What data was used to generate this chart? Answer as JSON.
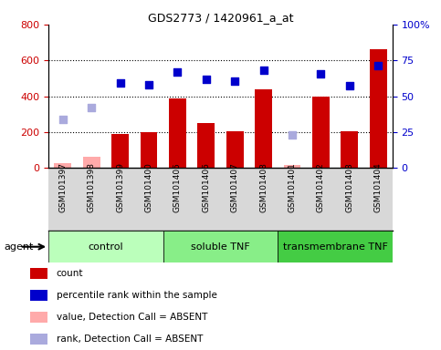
{
  "title": "GDS2773 / 1420961_a_at",
  "samples": [
    "GSM101397",
    "GSM101398",
    "GSM101399",
    "GSM101400",
    "GSM101405",
    "GSM101406",
    "GSM101407",
    "GSM101408",
    "GSM101401",
    "GSM101402",
    "GSM101403",
    "GSM101404"
  ],
  "groups": [
    {
      "label": "control",
      "start": 0,
      "end": 4,
      "color": "#bbffbb"
    },
    {
      "label": "soluble TNF",
      "start": 4,
      "end": 8,
      "color": "#88ee88"
    },
    {
      "label": "transmembrane TNF",
      "start": 8,
      "end": 12,
      "color": "#44cc44"
    }
  ],
  "bar_values": [
    null,
    null,
    190,
    200,
    390,
    250,
    205,
    440,
    null,
    400,
    205,
    660
  ],
  "bar_absent": [
    25,
    65,
    null,
    null,
    null,
    null,
    null,
    null,
    15,
    null,
    null,
    null
  ],
  "blue_squares": [
    null,
    null,
    475,
    465,
    535,
    495,
    483,
    545,
    null,
    525,
    458,
    570
  ],
  "blue_absent": [
    270,
    335,
    null,
    null,
    null,
    null,
    null,
    null,
    183,
    null,
    null,
    null
  ],
  "ylim_left": [
    0,
    800
  ],
  "ylim_right": [
    0,
    100
  ],
  "yticks_left": [
    0,
    200,
    400,
    600,
    800
  ],
  "yticks_right": [
    0,
    25,
    50,
    75,
    100
  ],
  "ytick_right_labels": [
    "0",
    "25",
    "50",
    "75",
    "100%"
  ],
  "bar_color": "#cc0000",
  "bar_absent_color": "#ffaaaa",
  "blue_color": "#0000cc",
  "blue_absent_color": "#aaaadd",
  "plot_bg": "#ffffff",
  "xticklabel_bg": "#d8d8d8",
  "left_label_color": "#cc0000",
  "right_label_color": "#0000cc",
  "legend_items": [
    {
      "color": "#cc0000",
      "label": "count"
    },
    {
      "color": "#0000cc",
      "label": "percentile rank within the sample"
    },
    {
      "color": "#ffaaaa",
      "label": "value, Detection Call = ABSENT"
    },
    {
      "color": "#aaaadd",
      "label": "rank, Detection Call = ABSENT"
    }
  ]
}
